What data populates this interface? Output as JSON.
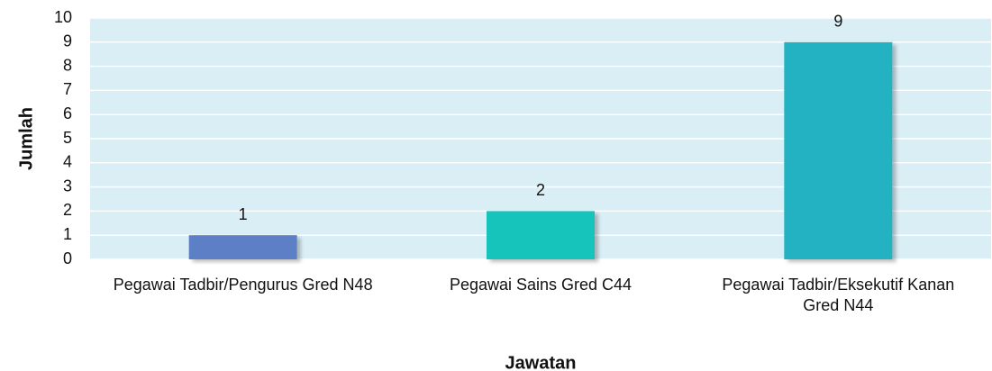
{
  "chart_data": {
    "type": "bar",
    "x_label": "Jawatan",
    "y_label": "Jumlah",
    "categories": [
      "Pegawai Tadbir/Pengurus Gred N48",
      "Pegawai Sains Gred C44",
      "Pegawai Tadbir/Eksekutif Kanan Gred N44"
    ],
    "values": [
      1,
      2,
      9
    ],
    "colors": [
      "#5b7fc6",
      "#12c4bc",
      "#23b2c1"
    ],
    "ylim": [
      0,
      10
    ],
    "yticks": [
      0,
      1,
      2,
      3,
      4,
      5,
      6,
      7,
      8,
      9,
      10
    ],
    "grid": true
  }
}
